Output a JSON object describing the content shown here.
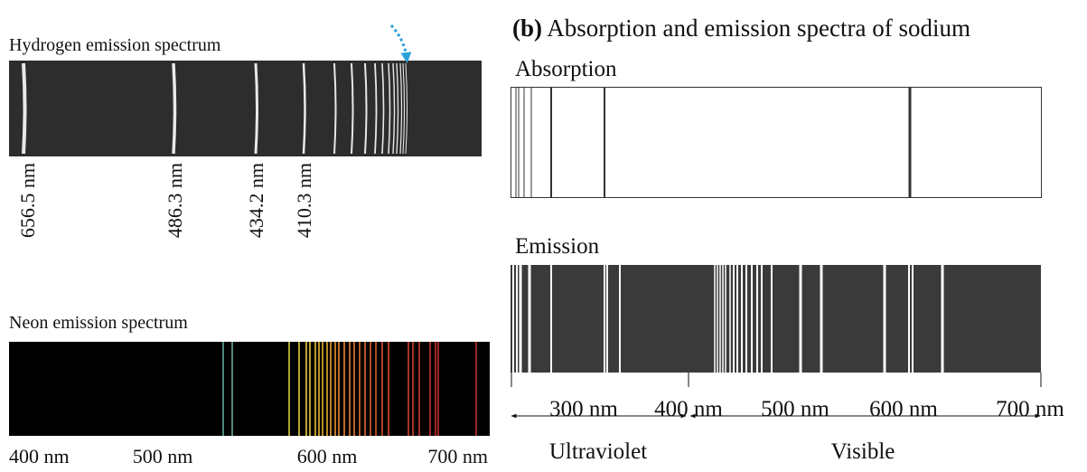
{
  "hydrogen": {
    "title": "Hydrogen emission spectrum",
    "line_labels": [
      "656.5 nm",
      "486.3 nm",
      "434.2 nm",
      "410.3 nm"
    ]
  },
  "neon": {
    "title": "Neon emission spectrum",
    "axis_labels": [
      "400 nm",
      "500 nm",
      "600 nm",
      "700 nm"
    ]
  },
  "sodium": {
    "title_prefix": "(b)",
    "title": "Absorption and emission spectra of sodium",
    "absorption_label": "Absorption",
    "emission_label": "Emission",
    "axis_labels": [
      "300 nm",
      "400 nm",
      "500 nm",
      "600 nm",
      "700 nm"
    ],
    "regions": [
      "Ultraviolet",
      "Visible"
    ]
  }
}
